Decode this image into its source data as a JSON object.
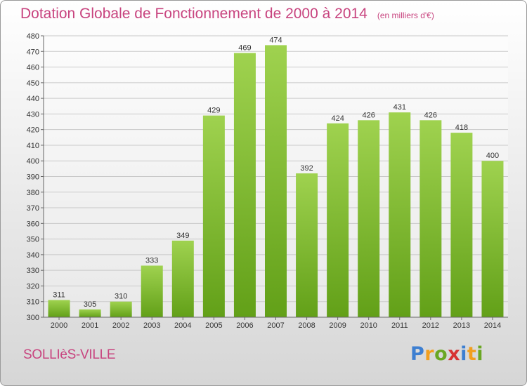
{
  "header": {
    "title": "Dotation Globale de Fonctionnement de 2000 à 2014",
    "unit_note": "(en milliers d'€)"
  },
  "footer": {
    "commune": "SOLLIèS-VILLE",
    "logo_text": "Proxiti"
  },
  "colors": {
    "bar_top": "#9fd24f",
    "bar_bottom": "#62a018",
    "title": "#c8447f",
    "grid": "#c9c9c9"
  },
  "chart_data": {
    "type": "bar",
    "title": "Dotation Globale de Fonctionnement de 2000 à 2014",
    "categories": [
      "2000",
      "2001",
      "2002",
      "2003",
      "2004",
      "2005",
      "2006",
      "2007",
      "2008",
      "2009",
      "2010",
      "2011",
      "2012",
      "2013",
      "2014"
    ],
    "values": [
      311,
      305,
      310,
      333,
      349,
      429,
      469,
      474,
      392,
      424,
      426,
      431,
      426,
      418,
      400
    ],
    "ylim": [
      300,
      480
    ],
    "ytick_step": 10,
    "grid": true,
    "data_labels": true
  }
}
